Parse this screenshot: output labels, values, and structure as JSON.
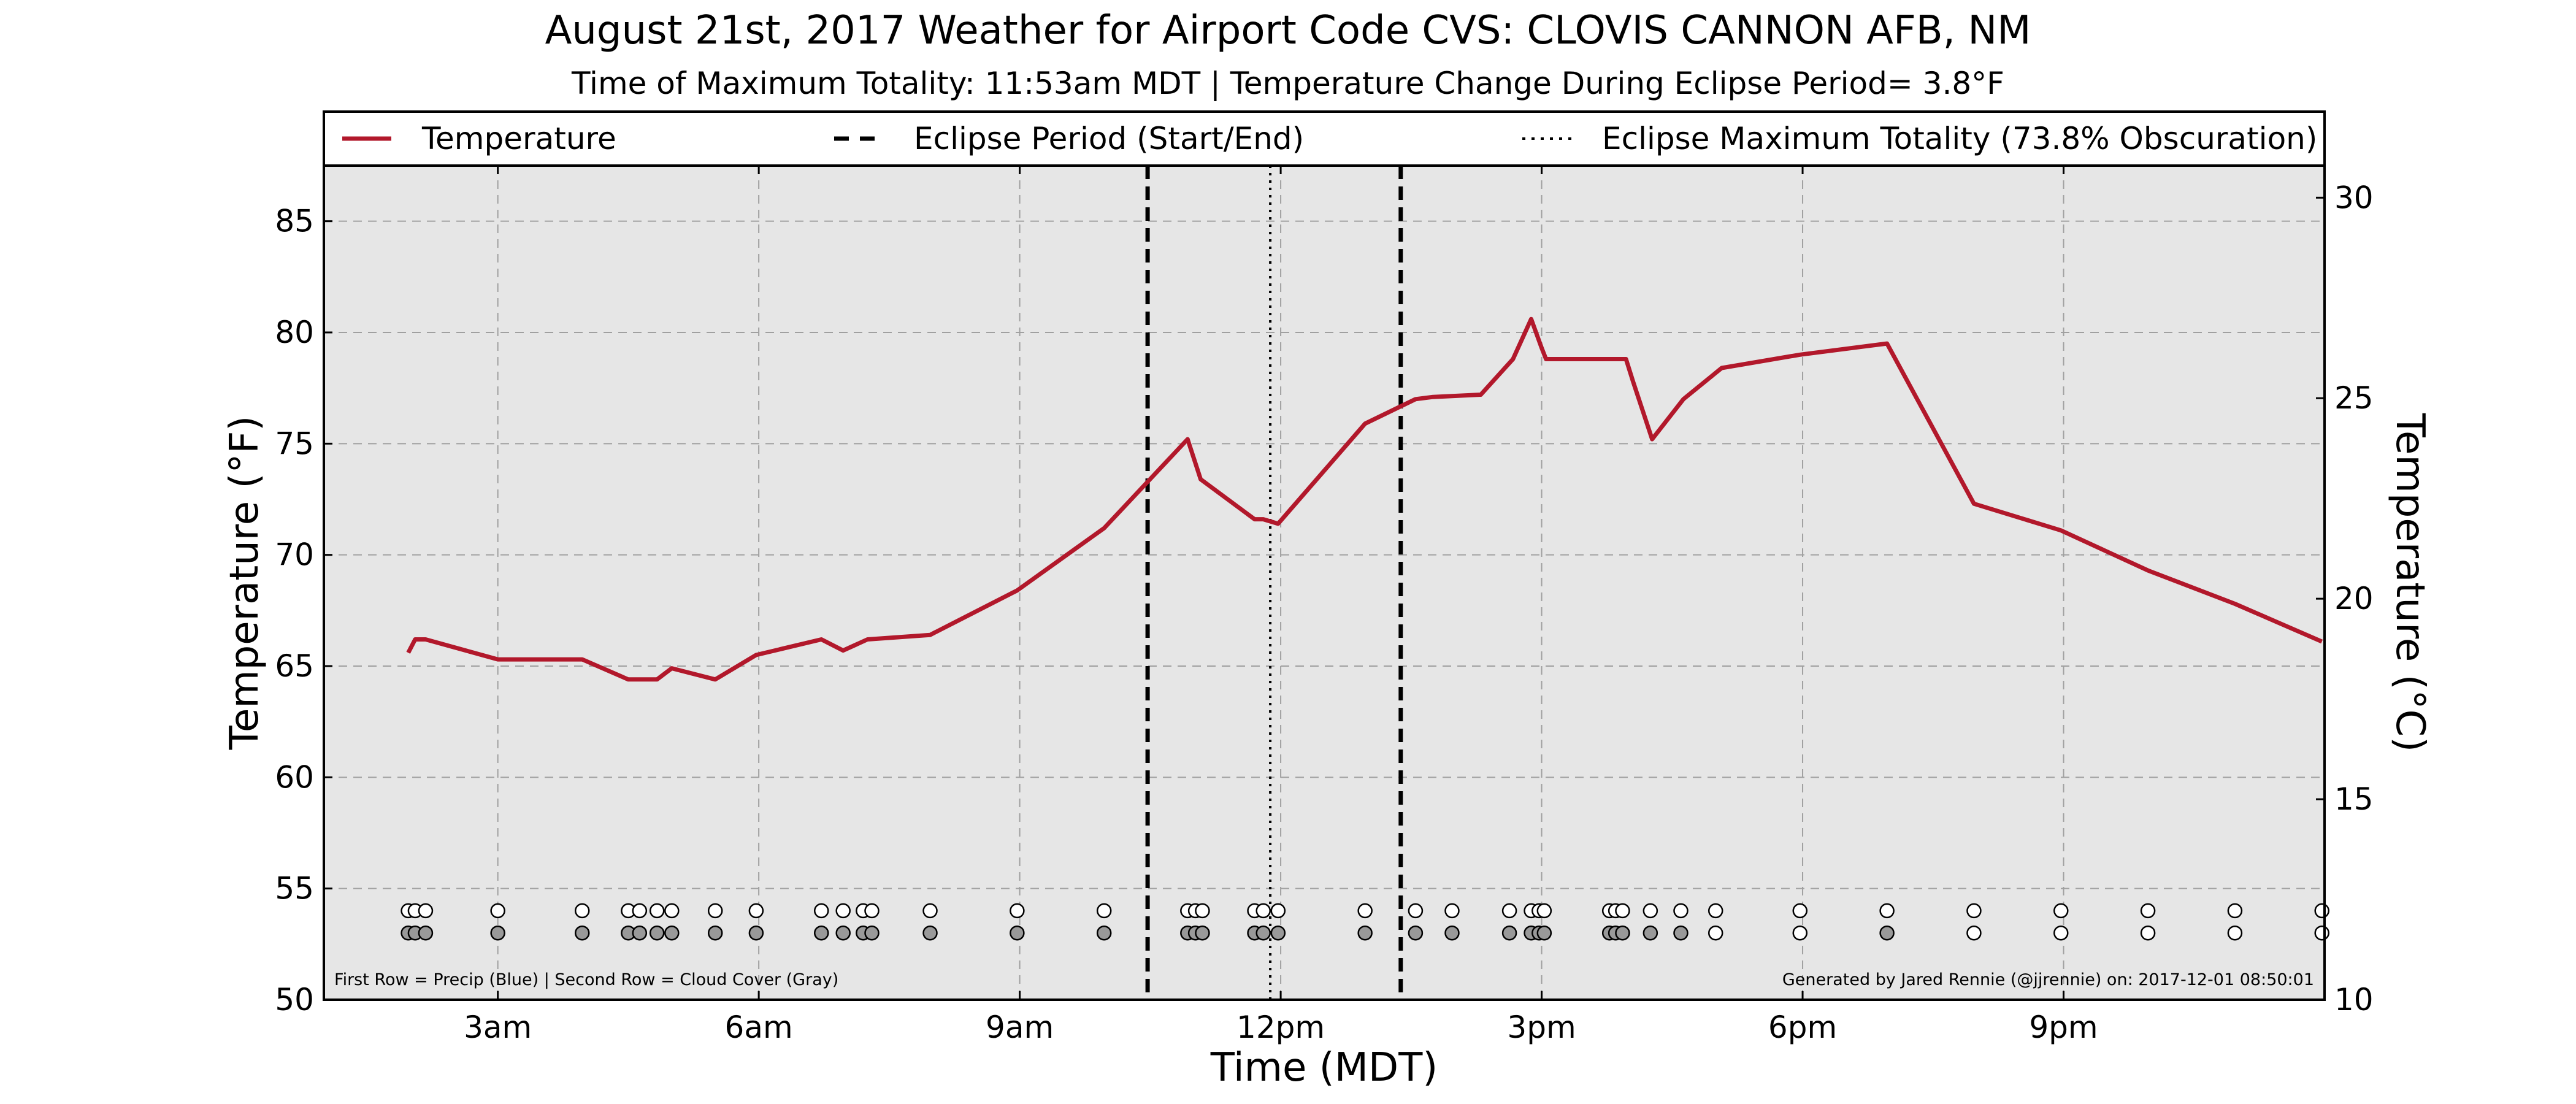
{
  "title": "August 21st, 2017 Weather for Airport Code CVS: CLOVIS CANNON AFB, NM",
  "subtitle": "Time of Maximum Totality: 11:53am MDT | Temperature Change During Eclipse Period= 3.8°F",
  "chart_data": {
    "type": "line",
    "xlabel": "Time (MDT)",
    "ylabel": "Temperature (°F)",
    "ylabel_right": "Temperature (°C)",
    "xlim": [
      1,
      24
    ],
    "ylim": [
      50,
      87.5
    ],
    "ylim_right": [
      10,
      30.8
    ],
    "x_ticks": [
      3,
      6,
      9,
      12,
      15,
      18,
      21
    ],
    "x_tick_labels": [
      "3am",
      "6am",
      "9am",
      "12pm",
      "3pm",
      "6pm",
      "9pm"
    ],
    "y_ticks": [
      50,
      55,
      60,
      65,
      70,
      75,
      80,
      85
    ],
    "y_tick_labels": [
      "50",
      "55",
      "60",
      "65",
      "70",
      "75",
      "80",
      "85"
    ],
    "y_ticks_right": [
      10,
      15,
      20,
      25,
      30
    ],
    "y_tick_labels_right": [
      "10",
      "15",
      "20",
      "25",
      "30"
    ],
    "grid": true,
    "legend": {
      "placement": "top",
      "entries": [
        {
          "label": "Temperature",
          "style": "solid",
          "color": "#b2182b"
        },
        {
          "label": "Eclipse Period (Start/End)",
          "style": "dashed",
          "color": "#000000"
        },
        {
          "label": "Eclipse Maximum Totality (73.8% Obscuration)",
          "style": "dotted",
          "color": "#000000"
        }
      ]
    },
    "series": [
      {
        "name": "Temperature",
        "color": "#b2182b",
        "x": [
          1.97,
          2.05,
          2.17,
          3.0,
          3.97,
          4.5,
          4.83,
          5.0,
          5.5,
          5.97,
          6.72,
          6.97,
          7.25,
          7.97,
          8.97,
          9.97,
          10.93,
          11.08,
          11.7,
          11.8,
          11.97,
          12.97,
          13.55,
          13.75,
          14.3,
          14.67,
          14.88,
          15.0,
          15.05,
          15.92,
          15.97,
          16.05,
          16.27,
          16.63,
          17.07,
          17.97,
          18.97,
          19.97,
          20.97,
          21.97,
          22.97,
          23.97
        ],
        "values": [
          65.6,
          66.2,
          66.2,
          65.3,
          65.3,
          64.4,
          64.4,
          64.9,
          64.4,
          65.5,
          66.2,
          65.7,
          66.2,
          66.4,
          68.4,
          71.2,
          75.2,
          73.4,
          71.6,
          71.6,
          71.4,
          75.9,
          77.0,
          77.1,
          77.2,
          78.8,
          80.6,
          79.3,
          78.8,
          78.8,
          78.8,
          77.8,
          75.2,
          77.0,
          78.4,
          79.0,
          79.5,
          72.3,
          71.1,
          69.3,
          67.8,
          66.1
        ]
      }
    ],
    "eclipse_start": 10.47,
    "eclipse_max": 11.88,
    "eclipse_end": 13.38,
    "precip_row_times": [
      1.97,
      2.05,
      2.17,
      3.0,
      3.97,
      4.5,
      4.63,
      4.83,
      5.0,
      5.5,
      5.97,
      6.72,
      6.97,
      7.2,
      7.3,
      7.97,
      8.97,
      9.97,
      10.93,
      11.02,
      11.1,
      11.7,
      11.8,
      11.97,
      12.97,
      13.55,
      13.97,
      14.63,
      14.88,
      14.97,
      15.03,
      15.78,
      15.85,
      15.93,
      16.25,
      16.6,
      17.0,
      17.97,
      18.97,
      19.97,
      20.97,
      21.97,
      22.97,
      23.97
    ],
    "cloud_row_times": [
      1.97,
      2.05,
      2.17,
      3.0,
      3.97,
      4.5,
      4.63,
      4.83,
      5.0,
      5.5,
      5.97,
      6.72,
      6.97,
      7.2,
      7.3,
      7.97,
      8.97,
      9.97,
      10.93,
      11.02,
      11.1,
      11.7,
      11.8,
      11.97,
      12.97,
      13.55,
      13.97,
      14.63,
      14.88,
      14.97,
      15.03,
      15.78,
      15.85,
      15.93,
      16.25,
      16.6,
      17.0,
      17.97,
      18.97,
      19.97,
      20.97,
      21.97,
      22.97,
      23.97
    ],
    "cloud_row_clear": [
      false,
      false,
      false,
      false,
      false,
      false,
      false,
      false,
      false,
      false,
      false,
      false,
      false,
      false,
      false,
      false,
      false,
      false,
      false,
      false,
      false,
      false,
      false,
      false,
      false,
      false,
      false,
      false,
      false,
      false,
      false,
      false,
      false,
      false,
      false,
      false,
      true,
      true,
      false,
      true,
      true,
      true,
      true,
      true
    ],
    "row_note": "First Row = Precip (Blue) | Second Row = Cloud Cover (Gray)",
    "credit_note": "Generated by Jared Rennie (@jjrennie) on: 2017-12-01 08:50:01"
  }
}
